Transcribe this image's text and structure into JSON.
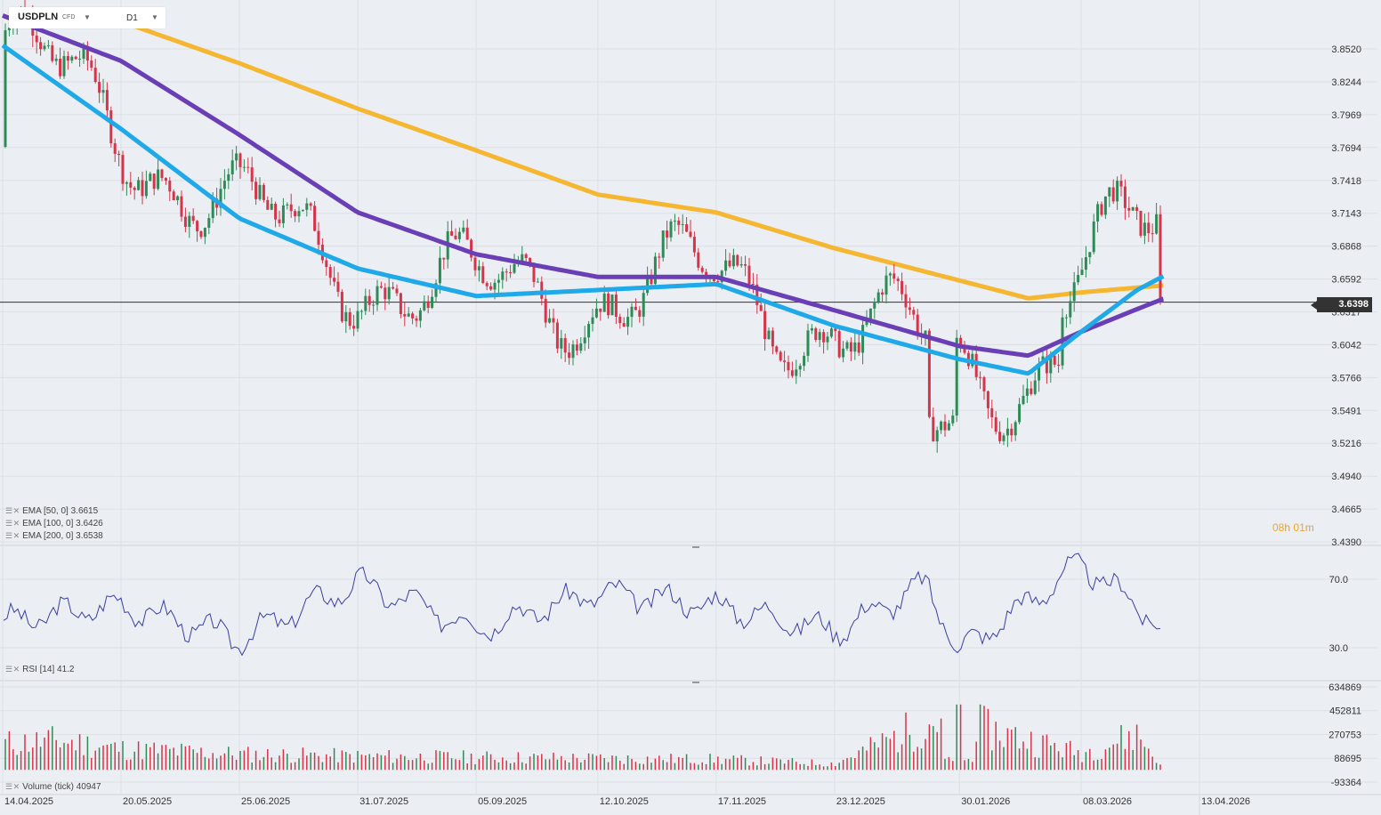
{
  "header": {
    "symbol": "USDPLN",
    "instrument_type": "CFD",
    "timeframe": "D1"
  },
  "price_axis": {
    "ticks": [
      "3.8520",
      "3.8244",
      "3.7969",
      "3.7694",
      "3.7418",
      "3.7143",
      "3.6868",
      "3.6592",
      "3.6317",
      "3.6042",
      "3.5766",
      "3.5491",
      "3.5216",
      "3.4940",
      "3.4665",
      "3.4390"
    ]
  },
  "rsi_axis": {
    "ticks": [
      "70.0",
      "30.0"
    ]
  },
  "volume_axis": {
    "ticks": [
      "634869",
      "452811",
      "270753",
      "88695",
      "-93364"
    ]
  },
  "date_axis": {
    "ticks": [
      "14.04.2025",
      "20.05.2025",
      "25.06.2025",
      "31.07.2025",
      "05.09.2025",
      "12.10.2025",
      "17.11.2025",
      "23.12.2025",
      "30.01.2026",
      "08.03.2026",
      "13.04.2026"
    ]
  },
  "current_price": "3.6398",
  "countdown": {
    "hours": "08",
    "h_unit": "h",
    "minutes": "01",
    "m_unit": "m"
  },
  "legends": {
    "ema50": "EMA [50, 0] 3.6615",
    "ema100": "EMA [100, 0] 3.6426",
    "ema200": "EMA [200, 0] 3.6538",
    "rsi": "RSI [14] 41.2",
    "volume": "Volume (tick) 40947"
  },
  "colors": {
    "background": "#ebeef2",
    "bull_candle": "#2e8b57",
    "bear_candle": "#d6344a",
    "ema50": "#1fa9e8",
    "ema100": "#6a3fb5",
    "ema200": "#f5b731",
    "rsi_line": "#3a3f9e",
    "price_tag": "#333333",
    "countdown": "#f5a623"
  },
  "chart_data": {
    "type": "candlestick",
    "instrument": "USDPLN",
    "timeframe": "D1",
    "price_range": [
      3.439,
      3.852
    ],
    "last_close": 3.6398,
    "ema_series": [
      {
        "name": "EMA [50, 0]",
        "last": 3.6615,
        "dates": [
          "14.04.2025",
          "20.05.2025",
          "25.06.2025",
          "31.07.2025",
          "05.09.2025",
          "12.10.2025",
          "17.11.2025",
          "23.12.2025",
          "30.01.2026",
          "20.02.2026",
          "08.03.2026",
          "25.03.2026",
          "02.04.2026"
        ],
        "values": [
          3.855,
          3.785,
          3.71,
          3.668,
          3.645,
          3.65,
          3.655,
          3.62,
          3.592,
          3.58,
          3.615,
          3.65,
          3.6615
        ]
      },
      {
        "name": "EMA [100, 0]",
        "last": 3.6426,
        "dates": [
          "14.04.2025",
          "20.05.2025",
          "25.06.2025",
          "31.07.2025",
          "05.09.2025",
          "12.10.2025",
          "17.11.2025",
          "23.12.2025",
          "30.01.2026",
          "20.02.2026",
          "08.03.2026",
          "25.03.2026",
          "02.04.2026"
        ],
        "values": [
          3.88,
          3.842,
          3.78,
          3.715,
          3.68,
          3.661,
          3.661,
          3.633,
          3.603,
          3.595,
          3.615,
          3.634,
          3.6426
        ]
      },
      {
        "name": "EMA [200, 0]",
        "last": 3.6538,
        "dates": [
          "20.05.2025",
          "25.06.2025",
          "31.07.2025",
          "05.09.2025",
          "12.10.2025",
          "17.11.2025",
          "23.12.2025",
          "30.01.2026",
          "20.02.2026",
          "08.03.2026",
          "25.03.2026",
          "02.04.2026"
        ],
        "values": [
          3.875,
          3.84,
          3.802,
          3.767,
          3.73,
          3.715,
          3.685,
          3.658,
          3.643,
          3.648,
          3.652,
          3.6538
        ]
      }
    ],
    "rsi": {
      "name": "RSI [14]",
      "last": 41.2,
      "range": [
        30,
        70
      ],
      "dates": [
        "14.04.2025",
        "20.05.2025",
        "25.06.2025",
        "31.07.2025",
        "05.09.2025",
        "12.10.2025",
        "17.11.2025",
        "23.12.2025",
        "20.01.2026",
        "30.01.2026",
        "08.03.2026",
        "25.03.2026",
        "02.04.2026"
      ],
      "values": [
        45,
        55,
        35,
        68,
        42,
        62,
        55,
        40,
        67,
        28,
        79,
        55,
        41.2
      ]
    },
    "volume": {
      "name": "Volume (tick)",
      "last": 40947,
      "dates": [
        "14.04.2025",
        "01.05.2025",
        "20.05.2025",
        "25.06.2025",
        "31.07.2025",
        "05.09.2025",
        "12.10.2025",
        "17.11.2025",
        "23.12.2025",
        "24.01.2026",
        "08.03.2026",
        "25.03.2026",
        "02.04.2026"
      ],
      "values": [
        250000,
        280000,
        200000,
        150000,
        130000,
        120000,
        110000,
        100000,
        60000,
        500000,
        160000,
        340000,
        40947
      ]
    }
  }
}
